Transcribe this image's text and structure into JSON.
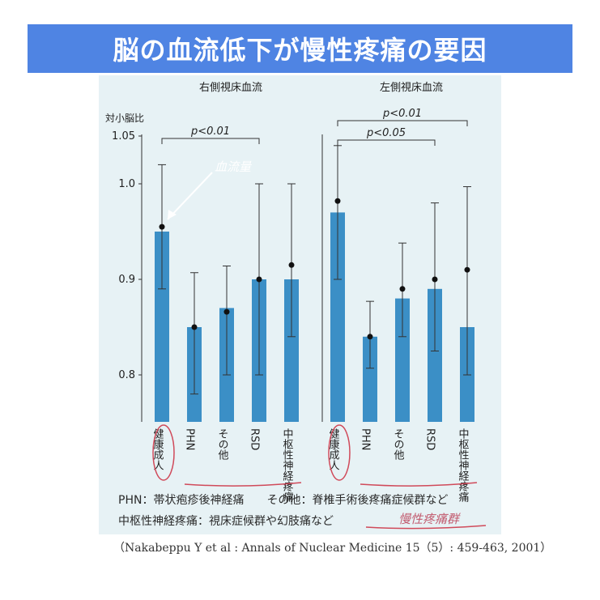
{
  "page": {
    "title": "脳の血流低下が慢性疼痛の要因"
  },
  "colors": {
    "banner": "#4f84e3",
    "bar": "#3b8fc6",
    "panel": "#e7f2f5",
    "circle": "#d04a5a",
    "accent_line": "#d04a5a"
  },
  "chart_data": [
    {
      "type": "bar",
      "title": "右側視床血流",
      "ylabel": "対小脳比",
      "ylim": [
        0.75,
        1.06
      ],
      "yticks": [
        "0.8",
        "0.9",
        "1.0",
        "1.05"
      ],
      "categories": [
        "健康成人",
        "PHN",
        "その他",
        "RSD",
        "中枢性神経疼痛"
      ],
      "series": [
        {
          "type": "bar",
          "values": [
            0.95,
            0.85,
            0.87,
            0.9,
            0.9
          ]
        },
        {
          "type": "scatter",
          "values": [
            0.955,
            0.85,
            0.866,
            0.9,
            0.915
          ]
        }
      ],
      "error_bars": [
        [
          0.89,
          1.02
        ],
        [
          0.78,
          0.907
        ],
        [
          0.8,
          0.914
        ],
        [
          0.8,
          1.0
        ],
        [
          0.84,
          1.0
        ]
      ],
      "significance": [
        {
          "label": "p<0.01",
          "from": "健康成人",
          "to": "RSD"
        }
      ]
    },
    {
      "type": "bar",
      "title": "左側視床血流",
      "ylabel": "",
      "ylim": [
        0.75,
        1.06
      ],
      "categories": [
        "健康成人",
        "PHN",
        "その他",
        "RSD",
        "中枢性神経疼痛"
      ],
      "series": [
        {
          "type": "bar",
          "values": [
            0.97,
            0.84,
            0.88,
            0.89,
            0.85
          ]
        },
        {
          "type": "scatter",
          "values": [
            0.982,
            0.84,
            0.89,
            0.9,
            0.91
          ]
        }
      ],
      "error_bars": [
        [
          0.9,
          1.04
        ],
        [
          0.807,
          0.877
        ],
        [
          0.84,
          0.938
        ],
        [
          0.825,
          0.98
        ],
        [
          0.8,
          0.997
        ]
      ],
      "significance": [
        {
          "label": "p<0.01",
          "from": "健康成人",
          "to": "中枢性神経疼痛"
        },
        {
          "label": "p<0.05",
          "from": "健康成人",
          "to": "RSD"
        }
      ]
    }
  ],
  "footnotes": {
    "line1": "PHN：帯状疱疹後神経痛　　その他：脊椎手術後疼痛症候群など",
    "line2": "中枢性神経疼痛：視床症候群や幻肢痛など"
  },
  "annotations": {
    "hand_note_1": "血流量",
    "hand_note_2": "慢性疼痛群"
  },
  "citation": "（Nakabeppu Y et al : Annals of Nuclear Medicine 15（5）: 459-463, 2001）"
}
